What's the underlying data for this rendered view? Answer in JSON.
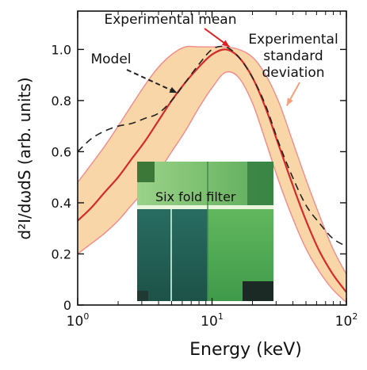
{
  "chart_data": {
    "type": "line",
    "xlabel": "Energy (keV)",
    "ylabel": "d²I/dωdS (arb. units)",
    "x_scale": "log",
    "xlim": [
      1,
      100
    ],
    "ylim": [
      0,
      1.15
    ],
    "x_ticks": [
      1,
      10,
      100
    ],
    "x_tick_labels": [
      {
        "base": "10",
        "exp": "0"
      },
      {
        "base": "10",
        "exp": "1"
      },
      {
        "base": "10",
        "exp": "2"
      }
    ],
    "y_ticks": [
      0,
      0.2,
      0.4,
      0.6,
      0.8,
      1.0
    ],
    "y_tick_labels": [
      "0",
      "0.2",
      "0.4",
      "0.6",
      "0.8",
      "1.0"
    ],
    "grid": false,
    "series": [
      {
        "name": "Experimental mean",
        "style": "solid",
        "color": "#d42a2a",
        "x": [
          1,
          1.26,
          1.58,
          2,
          2.51,
          3.16,
          3.98,
          5.01,
          6.31,
          7.94,
          10,
          12.6,
          15.8,
          20,
          25.1,
          31.6,
          39.8,
          50.1,
          63.1,
          79.4,
          100
        ],
        "y": [
          0.33,
          0.38,
          0.44,
          0.5,
          0.57,
          0.64,
          0.72,
          0.8,
          0.87,
          0.93,
          0.98,
          1.0,
          0.97,
          0.89,
          0.77,
          0.62,
          0.47,
          0.33,
          0.21,
          0.12,
          0.05
        ]
      },
      {
        "name": "Model",
        "style": "dashed",
        "color": "#222222",
        "x": [
          1,
          1.26,
          1.58,
          2,
          2.51,
          3.16,
          3.98,
          5.01,
          6.31,
          7.94,
          10,
          12.6,
          15.8,
          20,
          25.1,
          31.6,
          39.8,
          50.1,
          63.1,
          79.4,
          100
        ],
        "y": [
          0.6,
          0.65,
          0.68,
          0.7,
          0.71,
          0.73,
          0.75,
          0.8,
          0.87,
          0.94,
          1.0,
          1.01,
          0.97,
          0.89,
          0.78,
          0.63,
          0.5,
          0.39,
          0.32,
          0.26,
          0.23
        ]
      }
    ],
    "band": {
      "name": "Experimental standard deviation",
      "color": "#f9d6a8",
      "edge_color": "#f28a8a",
      "x": [
        1,
        1.26,
        1.58,
        2,
        2.51,
        3.16,
        3.98,
        5.01,
        6.31,
        7.94,
        10,
        12.6,
        15.8,
        20,
        25.1,
        31.6,
        39.8,
        50.1,
        63.1,
        79.4,
        100
      ],
      "upper": [
        0.48,
        0.55,
        0.62,
        0.7,
        0.78,
        0.86,
        0.93,
        0.98,
        1.01,
        1.01,
        1.01,
        1.01,
        1.0,
        0.97,
        0.9,
        0.79,
        0.64,
        0.49,
        0.35,
        0.22,
        0.12
      ],
      "lower": [
        0.2,
        0.24,
        0.28,
        0.33,
        0.39,
        0.45,
        0.52,
        0.6,
        0.68,
        0.77,
        0.85,
        0.91,
        0.89,
        0.79,
        0.64,
        0.48,
        0.34,
        0.22,
        0.13,
        0.06,
        0.01
      ]
    },
    "annotations": [
      {
        "text": "Experimental mean",
        "color": "#111111",
        "arrow_color": "#e02020",
        "target_x": 13.5,
        "target_y": 1.01
      },
      {
        "text": "Experimental",
        "color": "#111111"
      },
      {
        "text": "standard",
        "color": "#111111"
      },
      {
        "text": "deviation",
        "color": "#111111",
        "arrow_color": "#f5a07a",
        "target_x": 36,
        "target_y": 0.78
      },
      {
        "text": "Model",
        "color": "#111111",
        "arrow_color": "#222222",
        "target_x": 5.5,
        "target_y": 0.83
      }
    ],
    "inset": {
      "description_label": "Six fold filter",
      "label_color": "#e02a2a"
    }
  }
}
